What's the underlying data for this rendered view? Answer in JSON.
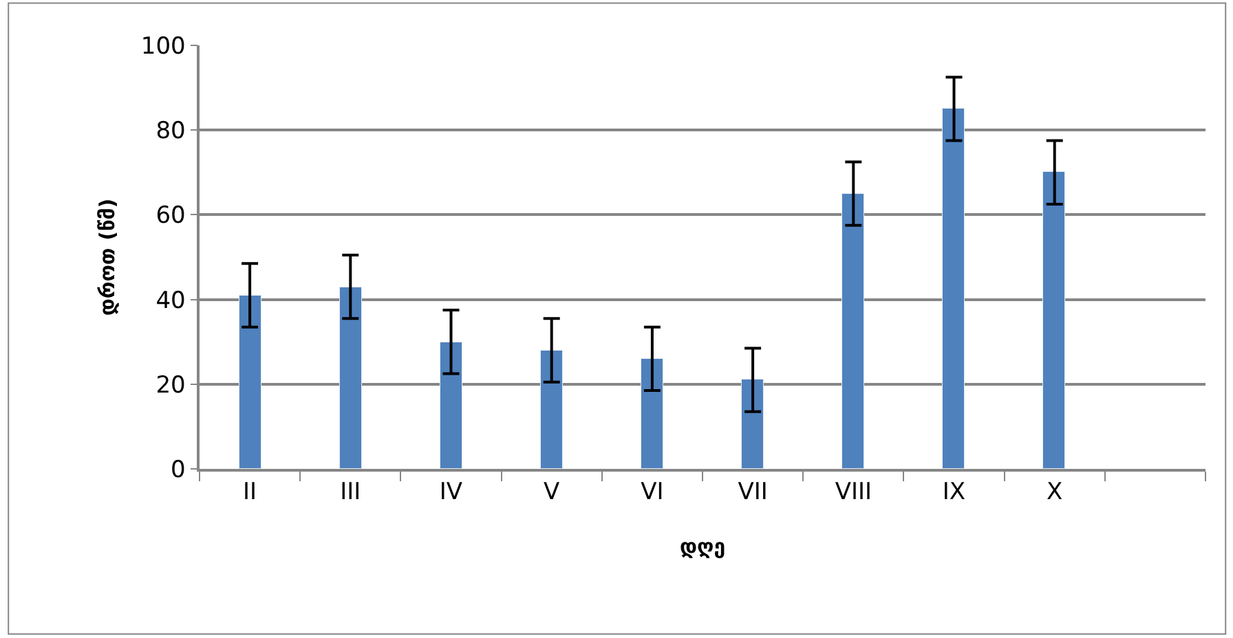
{
  "chart_data": {
    "type": "bar",
    "xlabel": "დღე",
    "ylabel": "დროთ (წმ)",
    "categories": [
      "II",
      "III",
      "IV",
      "V",
      "VI",
      "VII",
      "VIII",
      "IX",
      "X",
      null
    ],
    "series": [
      {
        "color": "#4f81bd",
        "values": [
          41,
          43,
          30,
          28,
          26,
          21,
          65,
          85,
          70,
          null
        ],
        "errors": [
          7.5,
          7.5,
          7.5,
          7.5,
          7.5,
          7.5,
          7.5,
          7.5,
          7.5,
          null
        ]
      }
    ],
    "ylim": [
      0,
      100
    ],
    "yticks": [
      0,
      20,
      40,
      60,
      80,
      100
    ],
    "grid": "y",
    "legend": false
  }
}
